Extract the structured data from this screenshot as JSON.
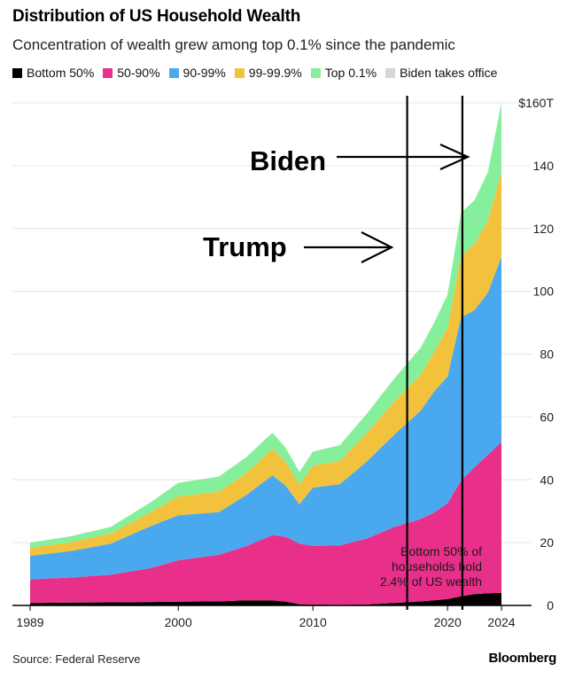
{
  "title": "Distribution of US Household Wealth",
  "subtitle": "Concentration of wealth grew among top 0.1% since the pandemic",
  "legend": [
    {
      "label": "Bottom 50%",
      "color": "#000000"
    },
    {
      "label": "50-90%",
      "color": "#e8308a"
    },
    {
      "label": "90-99%",
      "color": "#4aa8ef"
    },
    {
      "label": "99-99.9%",
      "color": "#f2c23c"
    },
    {
      "label": "Top 0.1%",
      "color": "#86ef9c"
    },
    {
      "label": "Biden takes office",
      "color": "#d6d6d6"
    }
  ],
  "source": "Source: Federal Reserve",
  "brand": "Bloomberg",
  "annotations": {
    "biden": "Biden",
    "trump": "Trump",
    "bottom_note": [
      "Bottom 50% of",
      "households hold",
      "2.4% of US wealth"
    ]
  },
  "chart_data": {
    "type": "area",
    "stacked": true,
    "title": "Distribution of US Household Wealth",
    "subtitle": "Concentration of wealth grew among top 0.1% since the pandemic",
    "x": [
      1989,
      1992,
      1995,
      1998,
      2000,
      2003,
      2005,
      2007,
      2008,
      2009,
      2010,
      2012,
      2014,
      2016,
      2018,
      2019,
      2020,
      2021,
      2022,
      2023,
      2024
    ],
    "x_ticks": [
      "1989",
      "2000",
      "2010",
      "2020",
      "2024"
    ],
    "y_ticks": [
      "0",
      "20",
      "40",
      "60",
      "80",
      "100",
      "120",
      "140",
      "$160T"
    ],
    "ylim": [
      0,
      160
    ],
    "grid": true,
    "legend_position": "top",
    "series": [
      {
        "name": "Bottom 50%",
        "color": "#000000",
        "values": [
          0.8,
          0.9,
          1.0,
          1.1,
          1.2,
          1.3,
          1.6,
          1.6,
          1.2,
          0.4,
          0.3,
          0.2,
          0.3,
          0.8,
          1.3,
          1.6,
          2.0,
          2.9,
          3.6,
          3.9,
          4.0
        ]
      },
      {
        "name": "50-90%",
        "color": "#e8308a",
        "values": [
          7.5,
          8.0,
          8.8,
          10.8,
          13.2,
          14.8,
          17.2,
          20.8,
          20.6,
          19.3,
          18.7,
          18.9,
          21.0,
          24.1,
          26.2,
          28.0,
          30.5,
          36.9,
          40.4,
          44.1,
          48.0
        ]
      },
      {
        "name": "90-99%",
        "color": "#4aa8ef",
        "values": [
          7.5,
          8.4,
          9.9,
          13.4,
          14.3,
          13.6,
          16.2,
          19.0,
          16.2,
          12.5,
          18.5,
          19.5,
          24.5,
          29.3,
          34.5,
          38.5,
          40.4,
          51.9,
          50.0,
          51.6,
          59.0
        ]
      },
      {
        "name": "99-99.9%",
        "color": "#f2c23c",
        "values": [
          2.5,
          2.8,
          3.2,
          4.5,
          6.0,
          6.5,
          7.0,
          8.5,
          7.5,
          6.3,
          7.0,
          7.4,
          9.1,
          10.5,
          11.5,
          12.5,
          15.5,
          19.5,
          21.0,
          23.0,
          27.0
        ]
      },
      {
        "name": "Top 0.1%",
        "color": "#86ef9c",
        "values": [
          1.7,
          1.9,
          2.1,
          3.2,
          4.3,
          4.8,
          5.0,
          5.1,
          4.5,
          4.0,
          4.5,
          5.0,
          6.1,
          7.3,
          8.5,
          9.4,
          10.6,
          13.8,
          14.0,
          15.4,
          22.0
        ]
      }
    ],
    "markers": [
      {
        "label": "Trump",
        "x": 2017.0
      },
      {
        "label": "Biden",
        "x": 2021.1
      }
    ]
  }
}
